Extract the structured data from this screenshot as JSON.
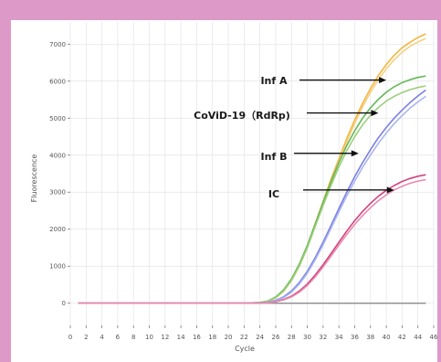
{
  "colors": {
    "border": "#dd99c8",
    "panel": "#ffffff",
    "grid": "#e4e4e4",
    "baseline": "#8a8a8a",
    "arrow": "#111111"
  },
  "chart_data": {
    "type": "line",
    "title": "",
    "xlabel": "Cycle",
    "ylabel": "Fluorescence",
    "xlim": [
      0,
      46
    ],
    "ylim": [
      -600,
      7600
    ],
    "grid": true,
    "x_ticks": [
      0,
      2,
      4,
      6,
      8,
      10,
      12,
      14,
      16,
      18,
      20,
      22,
      24,
      26,
      28,
      30,
      32,
      34,
      36,
      38,
      40,
      42,
      44,
      46
    ],
    "y_ticks": [
      0,
      1000,
      2000,
      3000,
      4000,
      5000,
      6000,
      7000
    ],
    "x_tick_labels": [
      "0",
      "2",
      "4",
      "6",
      "8",
      "10",
      "12",
      "14",
      "16",
      "18",
      "20",
      "22",
      "24",
      "26",
      "28",
      "30",
      "32",
      "34",
      "36",
      "38",
      "40",
      "42",
      "44",
      "46"
    ],
    "y_tick_labels": [
      "0",
      "1000",
      "2000",
      "3000",
      "4000",
      "5000",
      "6000",
      "7000"
    ],
    "x": [
      1,
      22,
      24,
      25,
      26,
      27,
      28,
      29,
      30,
      31,
      32,
      33,
      34,
      35,
      36,
      37,
      38,
      39,
      40,
      41,
      42,
      43,
      44,
      45
    ],
    "series": [
      {
        "color": "#f2b63c",
        "values": [
          0,
          0,
          20,
          60,
          160,
          350,
          650,
          1050,
          1550,
          2150,
          2750,
          3350,
          3900,
          4450,
          4950,
          5400,
          5800,
          6150,
          6450,
          6700,
          6900,
          7050,
          7180,
          7280
        ]
      },
      {
        "color": "#f6cf86",
        "values": [
          0,
          0,
          15,
          50,
          140,
          320,
          610,
          1000,
          1500,
          2080,
          2680,
          3260,
          3820,
          4360,
          4860,
          5300,
          5700,
          6040,
          6330,
          6580,
          6780,
          6940,
          7060,
          7150
        ]
      },
      {
        "color": "#64b857",
        "values": [
          0,
          0,
          20,
          60,
          170,
          360,
          660,
          1060,
          1560,
          2140,
          2730,
          3280,
          3800,
          4260,
          4660,
          5000,
          5280,
          5510,
          5700,
          5850,
          5960,
          6040,
          6100,
          6140
        ]
      },
      {
        "color": "#9ccf7c",
        "values": [
          0,
          0,
          15,
          55,
          150,
          330,
          620,
          1010,
          1500,
          2070,
          2640,
          3180,
          3680,
          4120,
          4500,
          4820,
          5080,
          5290,
          5460,
          5590,
          5690,
          5770,
          5830,
          5870
        ]
      },
      {
        "color": "#7c7fe2",
        "values": [
          0,
          0,
          10,
          30,
          80,
          170,
          330,
          560,
          860,
          1230,
          1650,
          2100,
          2560,
          3000,
          3420,
          3800,
          4150,
          4470,
          4750,
          5000,
          5220,
          5420,
          5600,
          5760
        ]
      },
      {
        "color": "#a8b6f0",
        "values": [
          0,
          0,
          8,
          25,
          70,
          150,
          300,
          520,
          810,
          1170,
          1580,
          2020,
          2470,
          2900,
          3300,
          3670,
          4010,
          4320,
          4600,
          4850,
          5070,
          5270,
          5440,
          5590
        ]
      },
      {
        "color": "#d2447e",
        "values": [
          0,
          0,
          5,
          15,
          45,
          100,
          190,
          330,
          520,
          760,
          1040,
          1340,
          1650,
          1950,
          2230,
          2480,
          2700,
          2890,
          3050,
          3180,
          3290,
          3370,
          3430,
          3470
        ]
      },
      {
        "color": "#e98ab0",
        "values": [
          0,
          0,
          4,
          12,
          38,
          88,
          170,
          300,
          480,
          710,
          980,
          1270,
          1570,
          1860,
          2130,
          2370,
          2580,
          2770,
          2930,
          3060,
          3160,
          3240,
          3300,
          3340
        ]
      }
    ],
    "annotations": [
      {
        "label": "Inf A",
        "arrow_tip": [
          40.0,
          6030
        ]
      },
      {
        "label": "CoViD-19（RdRp)",
        "arrow_tip": [
          39.0,
          5140
        ]
      },
      {
        "label": "Inf B",
        "arrow_tip": [
          36.5,
          4050
        ]
      },
      {
        "label": "IC",
        "arrow_tip": [
          41.0,
          3060
        ]
      }
    ]
  }
}
